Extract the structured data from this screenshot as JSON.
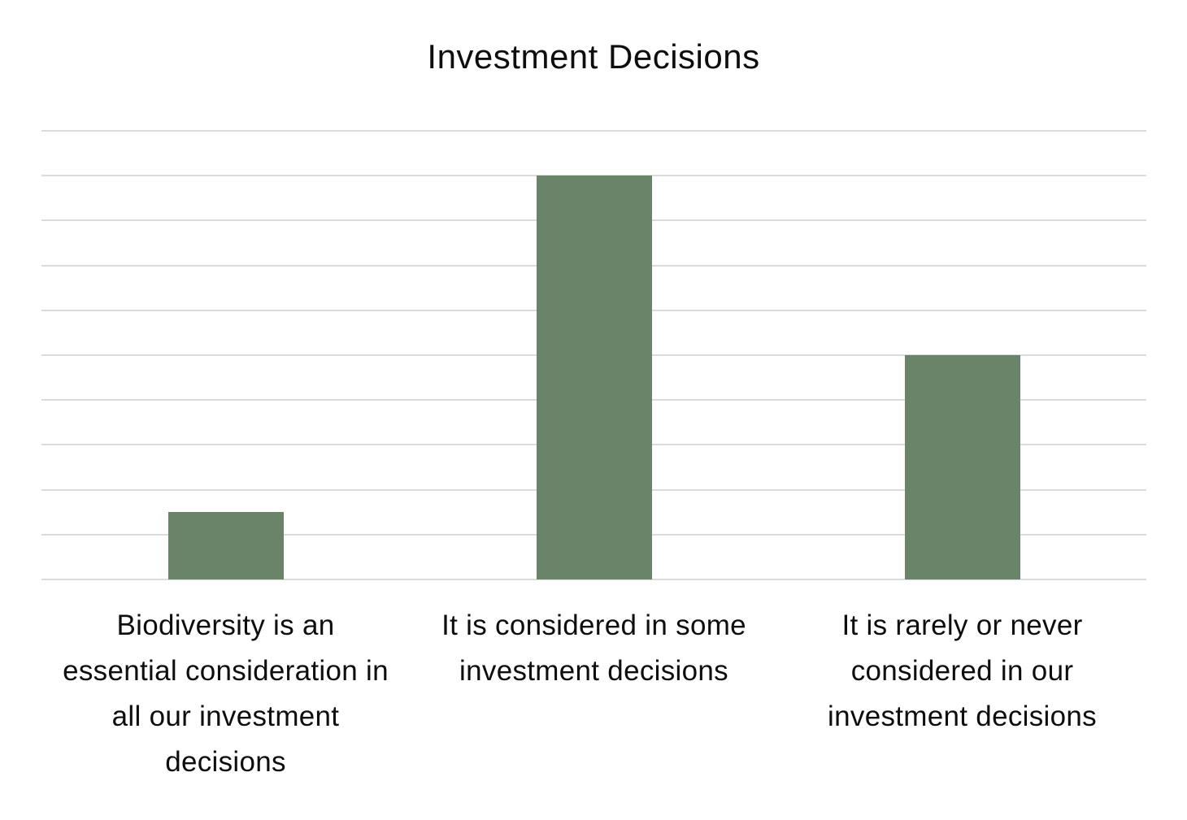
{
  "title": "Investment Decisions",
  "chart_data": {
    "type": "bar",
    "title": "Investment Decisions",
    "categories": [
      "Biodiversity is an essential consideration in all our investment decisions",
      "It is considered in some investment decisions",
      "It is rarely or never considered in our investment decisions"
    ],
    "categories_wrapped": [
      "Biodiversity is an\nessential consideration in\nall our investment\ndecisions",
      "It is considered in some\ninvestment decisions",
      "It is rarely or never\nconsidered in our\ninvestment decisions"
    ],
    "values": [
      15,
      90,
      50
    ],
    "xlabel": "",
    "ylabel": "",
    "ylim": [
      0,
      100
    ],
    "gridline_interval": 10,
    "y_tick_labels_visible": false,
    "grid": true,
    "legend": false,
    "bar_color": "#6A8469",
    "gridline_color": "#DBDBDB",
    "text_color": "#0E0E0E",
    "background_color": "#FFFFFF"
  }
}
